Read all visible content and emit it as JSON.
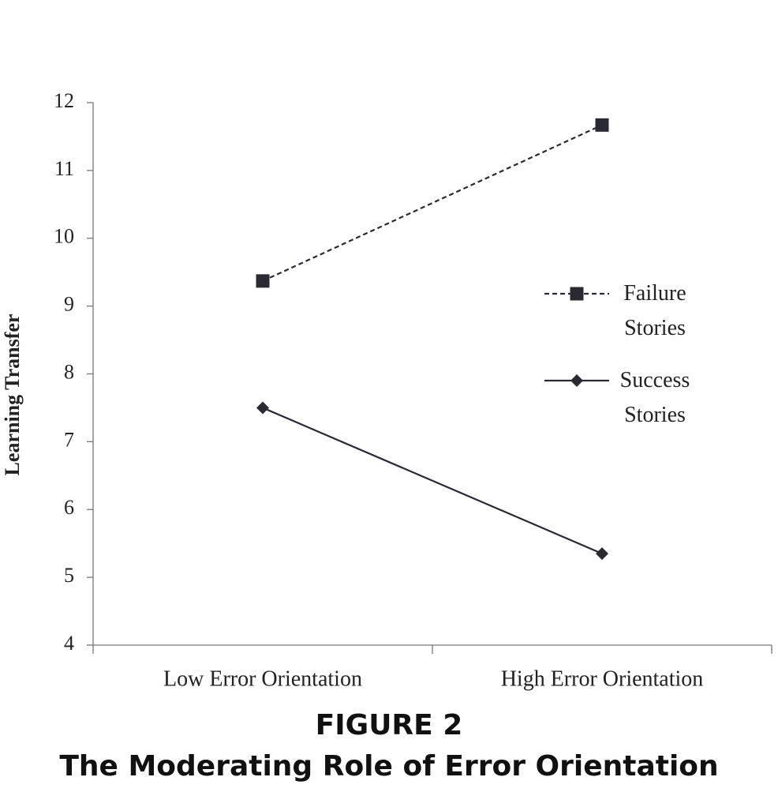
{
  "chart_data": {
    "type": "line",
    "title": "FIGURE 2",
    "subtitle": "The Moderating Role of Error Orientation",
    "y_label": "Learning Transfer",
    "categories": [
      "Low Error Orientation",
      "High Error Orientation"
    ],
    "series": [
      {
        "name": "Failure Stories",
        "color": "#2a2a33",
        "line_style": "dashed",
        "marker": "square",
        "values": [
          9.37,
          11.67
        ]
      },
      {
        "name": "Success Stories",
        "color": "#2a2a33",
        "line_style": "solid",
        "marker": "diamond",
        "values": [
          7.5,
          5.35
        ]
      }
    ],
    "ylim": [
      4,
      12
    ],
    "yticks": [
      4,
      5,
      6,
      7,
      8,
      9,
      10,
      11,
      12
    ],
    "grid": false
  }
}
